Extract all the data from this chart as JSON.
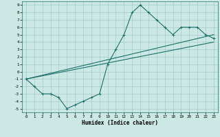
{
  "xlabel": "Humidex (Indice chaleur)",
  "xlim": [
    -0.5,
    23.5
  ],
  "ylim": [
    -5.5,
    9.5
  ],
  "xticks": [
    0,
    1,
    2,
    3,
    4,
    5,
    6,
    7,
    8,
    9,
    10,
    11,
    12,
    13,
    14,
    15,
    16,
    17,
    18,
    19,
    20,
    21,
    22,
    23
  ],
  "yticks": [
    -5,
    -4,
    -3,
    -2,
    -1,
    0,
    1,
    2,
    3,
    4,
    5,
    6,
    7,
    8,
    9
  ],
  "bg_color": "#cce8e4",
  "grid_color": "#a0ccc8",
  "line_color": "#1a6e68",
  "line1_x": [
    0,
    1,
    2,
    3,
    4,
    5,
    6,
    7,
    8,
    9,
    10,
    11,
    12,
    13,
    14,
    15,
    16,
    17,
    18,
    19,
    20,
    21,
    22,
    23
  ],
  "line1_y": [
    -1,
    -2,
    -3,
    -3,
    -3.5,
    -5,
    -4.5,
    -4,
    -3.5,
    -3,
    1,
    3,
    5,
    8,
    9,
    8,
    7,
    6,
    5,
    6,
    6,
    6,
    5,
    4.5
  ],
  "line2_x": [
    0,
    23
  ],
  "line2_y": [
    -1,
    5
  ],
  "line3_x": [
    0,
    23
  ],
  "line3_y": [
    -1,
    4
  ],
  "marker": "+"
}
